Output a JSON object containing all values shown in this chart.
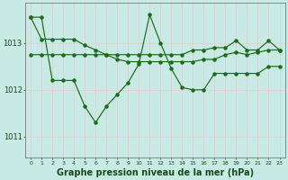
{
  "background_color": "#c8eae4",
  "grid_color": "#e8e8e8",
  "line_color": "#1a6b1a",
  "xlabel": "Graphe pression niveau de la mer (hPa)",
  "xlabel_fontsize": 7.0,
  "xlabel_fontweight": "bold",
  "yticks": [
    1011,
    1012,
    1013
  ],
  "ylim": [
    1010.55,
    1013.85
  ],
  "xlim": [
    -0.5,
    23.5
  ],
  "y_zigzag": [
    1013.55,
    1013.55,
    1012.2,
    1012.2,
    1012.2,
    1011.65,
    1011.3,
    1011.65,
    1011.9,
    1012.15,
    1012.55,
    1013.6,
    1013.0,
    1012.45,
    1012.05,
    1012.0,
    1012.0,
    1012.35,
    1012.35,
    1012.35,
    1012.35,
    1012.35,
    1012.5,
    1012.5
  ],
  "y_flat_top": [
    1012.75,
    1012.75,
    1012.75,
    1012.75,
    1012.75,
    1012.75,
    1012.75,
    1012.75,
    1012.75,
    1012.75,
    1012.75,
    1012.75,
    1012.75,
    1012.75,
    1012.75,
    1012.85,
    1012.85,
    1012.9,
    1012.9,
    1013.05,
    1012.85,
    1012.85,
    1013.05,
    1012.85
  ],
  "y_diagonal": [
    1013.55,
    1013.08,
    1013.08,
    1013.08,
    1013.08,
    1012.95,
    1012.85,
    1012.75,
    1012.65,
    1012.6,
    1012.6,
    1012.6,
    1012.6,
    1012.6,
    1012.6,
    1012.6,
    1012.65,
    1012.65,
    1012.75,
    1012.8,
    1012.75,
    1012.8,
    1012.85,
    1012.85
  ]
}
